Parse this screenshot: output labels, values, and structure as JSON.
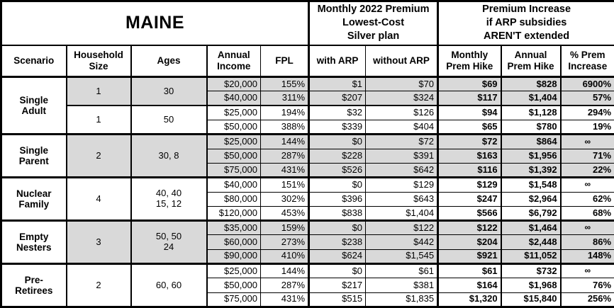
{
  "title": "MAINE",
  "colors": {
    "shaded_row": "#d9d9d9",
    "border": "#000000",
    "background": "#ffffff"
  },
  "header": {
    "monthly_premium_band": "Monthly 2022 Premium\nLowest-Cost\nSilver plan",
    "premium_increase_band": "Premium Increase\nif ARP subsidies\nAREN'T extended",
    "columns": [
      "Scenario",
      "Household\nSize",
      "Ages",
      "Annual\nIncome",
      "FPL",
      "with ARP",
      "without ARP",
      "Monthly\nPrem Hike",
      "Annual\nPrem Hike",
      "% Prem\nIncrease"
    ]
  },
  "chart_data": {
    "type": "table",
    "title": "MAINE — Monthly 2022 Premium Lowest-Cost Silver plan / Premium Increase if ARP subsidies AREN'T extended",
    "columns": [
      "Scenario",
      "Household Size",
      "Ages",
      "Annual Income",
      "FPL",
      "with ARP",
      "without ARP",
      "Monthly Prem Hike",
      "Annual Prem Hike",
      "% Prem Increase"
    ],
    "groups": [
      {
        "scenario": "Single\nAdult",
        "subgroups": [
          {
            "household": "1",
            "ages": "30",
            "shaded": true,
            "rows": [
              {
                "income": "$20,000",
                "fpl": "155%",
                "with_arp": "$1",
                "without_arp": "$70",
                "monthly_hike": "$69",
                "annual_hike": "$828",
                "pct_increase": "6900%"
              },
              {
                "income": "$40,000",
                "fpl": "311%",
                "with_arp": "$207",
                "without_arp": "$324",
                "monthly_hike": "$117",
                "annual_hike": "$1,404",
                "pct_increase": "57%"
              }
            ]
          },
          {
            "household": "1",
            "ages": "50",
            "shaded": false,
            "rows": [
              {
                "income": "$25,000",
                "fpl": "194%",
                "with_arp": "$32",
                "without_arp": "$126",
                "monthly_hike": "$94",
                "annual_hike": "$1,128",
                "pct_increase": "294%"
              },
              {
                "income": "$50,000",
                "fpl": "388%",
                "with_arp": "$339",
                "without_arp": "$404",
                "monthly_hike": "$65",
                "annual_hike": "$780",
                "pct_increase": "19%"
              }
            ]
          }
        ]
      },
      {
        "scenario": "Single\nParent",
        "subgroups": [
          {
            "household": "2",
            "ages": "30, 8",
            "shaded": true,
            "rows": [
              {
                "income": "$25,000",
                "fpl": "144%",
                "with_arp": "$0",
                "without_arp": "$72",
                "monthly_hike": "$72",
                "annual_hike": "$864",
                "pct_increase": "∞"
              },
              {
                "income": "$50,000",
                "fpl": "287%",
                "with_arp": "$228",
                "without_arp": "$391",
                "monthly_hike": "$163",
                "annual_hike": "$1,956",
                "pct_increase": "71%"
              },
              {
                "income": "$75,000",
                "fpl": "431%",
                "with_arp": "$526",
                "without_arp": "$642",
                "monthly_hike": "$116",
                "annual_hike": "$1,392",
                "pct_increase": "22%"
              }
            ]
          }
        ]
      },
      {
        "scenario": "Nuclear\nFamily",
        "subgroups": [
          {
            "household": "4",
            "ages": "40, 40\n15, 12",
            "shaded": false,
            "rows": [
              {
                "income": "$40,000",
                "fpl": "151%",
                "with_arp": "$0",
                "without_arp": "$129",
                "monthly_hike": "$129",
                "annual_hike": "$1,548",
                "pct_increase": "∞"
              },
              {
                "income": "$80,000",
                "fpl": "302%",
                "with_arp": "$396",
                "without_arp": "$643",
                "monthly_hike": "$247",
                "annual_hike": "$2,964",
                "pct_increase": "62%"
              },
              {
                "income": "$120,000",
                "fpl": "453%",
                "with_arp": "$838",
                "without_arp": "$1,404",
                "monthly_hike": "$566",
                "annual_hike": "$6,792",
                "pct_increase": "68%"
              }
            ]
          }
        ]
      },
      {
        "scenario": "Empty\nNesters",
        "subgroups": [
          {
            "household": "3",
            "ages": "50, 50\n24",
            "shaded": true,
            "rows": [
              {
                "income": "$35,000",
                "fpl": "159%",
                "with_arp": "$0",
                "without_arp": "$122",
                "monthly_hike": "$122",
                "annual_hike": "$1,464",
                "pct_increase": "∞"
              },
              {
                "income": "$60,000",
                "fpl": "273%",
                "with_arp": "$238",
                "without_arp": "$442",
                "monthly_hike": "$204",
                "annual_hike": "$2,448",
                "pct_increase": "86%"
              },
              {
                "income": "$90,000",
                "fpl": "410%",
                "with_arp": "$624",
                "without_arp": "$1,545",
                "monthly_hike": "$921",
                "annual_hike": "$11,052",
                "pct_increase": "148%"
              }
            ]
          }
        ]
      },
      {
        "scenario": "Pre-\nRetirees",
        "subgroups": [
          {
            "household": "2",
            "ages": "60, 60",
            "shaded": false,
            "rows": [
              {
                "income": "$25,000",
                "fpl": "144%",
                "with_arp": "$0",
                "without_arp": "$61",
                "monthly_hike": "$61",
                "annual_hike": "$732",
                "pct_increase": "∞"
              },
              {
                "income": "$50,000",
                "fpl": "287%",
                "with_arp": "$217",
                "without_arp": "$381",
                "monthly_hike": "$164",
                "annual_hike": "$1,968",
                "pct_increase": "76%"
              },
              {
                "income": "$75,000",
                "fpl": "431%",
                "with_arp": "$515",
                "without_arp": "$1,835",
                "monthly_hike": "$1,320",
                "annual_hike": "$15,840",
                "pct_increase": "256%"
              }
            ]
          }
        ]
      }
    ]
  }
}
